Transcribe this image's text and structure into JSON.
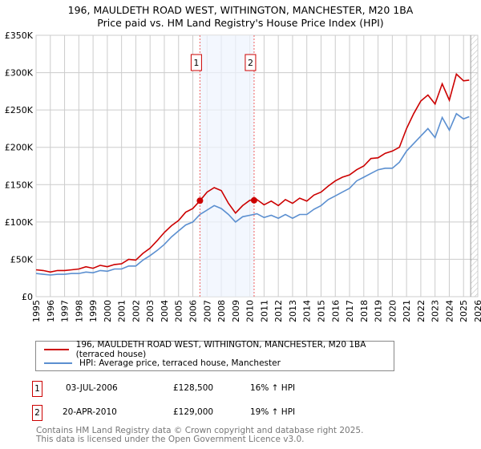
{
  "header": {
    "title": "196, MAULDETH ROAD WEST, WITHINGTON, MANCHESTER, M20 1BA",
    "subtitle": "Price paid vs. HM Land Registry's House Price Index (HPI)"
  },
  "colors": {
    "property": "#cc0000",
    "hpi": "#5b8fd0",
    "shade": "#eef3fd"
  },
  "chart_data": {
    "type": "line",
    "title": "196, MAULDETH ROAD WEST, WITHINGTON, MANCHESTER, M20 1BA",
    "xlabel": "",
    "ylabel": "",
    "xlim": [
      1995,
      2026
    ],
    "ylim": [
      0,
      350000
    ],
    "x_ticks": [
      "1995",
      "1996",
      "1997",
      "1998",
      "1999",
      "2000",
      "2001",
      "2002",
      "2003",
      "2004",
      "2005",
      "2006",
      "2007",
      "2008",
      "2009",
      "2010",
      "2011",
      "2012",
      "2013",
      "2014",
      "2015",
      "2016",
      "2017",
      "2018",
      "2019",
      "2020",
      "2021",
      "2022",
      "2023",
      "2024",
      "2025",
      "2026"
    ],
    "y_ticks": [
      {
        "v": 0,
        "label": "£0"
      },
      {
        "v": 50000,
        "label": "£50K"
      },
      {
        "v": 100000,
        "label": "£100K"
      },
      {
        "v": 150000,
        "label": "£150K"
      },
      {
        "v": 200000,
        "label": "£200K"
      },
      {
        "v": 250000,
        "label": "£250K"
      },
      {
        "v": 300000,
        "label": "£300K"
      },
      {
        "v": 350000,
        "label": "£350K"
      }
    ],
    "grid": true,
    "x": [
      1995,
      1995.5,
      1996,
      1996.5,
      1997,
      1997.5,
      1998,
      1998.5,
      1999,
      1999.5,
      2000,
      2000.5,
      2001,
      2001.5,
      2002,
      2002.5,
      2003,
      2003.5,
      2004,
      2004.5,
      2005,
      2005.5,
      2006,
      2006.5,
      2007,
      2007.5,
      2008,
      2008.5,
      2009,
      2009.5,
      2010,
      2010.5,
      2011,
      2011.5,
      2012,
      2012.5,
      2013,
      2013.5,
      2014,
      2014.5,
      2015,
      2015.5,
      2016,
      2016.5,
      2017,
      2017.5,
      2018,
      2018.5,
      2019,
      2019.5,
      2020,
      2020.5,
      2021,
      2021.5,
      2022,
      2022.5,
      2023,
      2023.5,
      2024,
      2024.5,
      2025,
      2025.4
    ],
    "series": [
      {
        "name": "196, MAULDETH ROAD WEST, WITHINGTON, MANCHESTER, M20 1BA (terraced house)",
        "values": [
          36000,
          35000,
          33000,
          35000,
          35000,
          36000,
          37000,
          40000,
          38000,
          42000,
          40000,
          43000,
          44000,
          50000,
          49000,
          58000,
          65000,
          75000,
          86000,
          95000,
          102000,
          113000,
          118000,
          128500,
          140000,
          146000,
          142000,
          125000,
          112000,
          122000,
          129000,
          130000,
          123000,
          128000,
          122000,
          130000,
          125000,
          132000,
          128000,
          136000,
          140000,
          148000,
          155000,
          160000,
          163000,
          170000,
          175000,
          185000,
          186000,
          192000,
          195000,
          200000,
          225000,
          245000,
          262000,
          270000,
          258000,
          285000,
          263000,
          298000,
          289000,
          290000
        ]
      },
      {
        "name": "HPI: Average price, terraced house, Manchester",
        "values": [
          31000,
          30000,
          29000,
          30000,
          30000,
          31000,
          31000,
          33000,
          32000,
          35000,
          34000,
          37000,
          37000,
          41000,
          41000,
          49000,
          55000,
          62000,
          70000,
          80000,
          88000,
          96000,
          100000,
          110000,
          116000,
          122000,
          118000,
          110000,
          100000,
          107000,
          109000,
          111000,
          106000,
          109000,
          105000,
          110000,
          105000,
          110000,
          110000,
          117000,
          122000,
          130000,
          135000,
          140000,
          145000,
          155000,
          160000,
          165000,
          170000,
          172000,
          172000,
          180000,
          195000,
          205000,
          215000,
          225000,
          213000,
          240000,
          223000,
          245000,
          238000,
          241000
        ]
      }
    ],
    "annotations": [
      {
        "label": "1",
        "x": 2006.5,
        "value": 128500
      },
      {
        "label": "2",
        "x": 2010.3,
        "value": 129000
      }
    ],
    "shaded_range": [
      2006.5,
      2010.3
    ]
  },
  "legend": {
    "items": [
      {
        "label": "196, MAULDETH ROAD WEST, WITHINGTON, MANCHESTER, M20 1BA (terraced house)"
      },
      {
        "label": "HPI: Average price, terraced house, Manchester"
      }
    ]
  },
  "transactions": [
    {
      "num": "1",
      "date": "03-JUL-2006",
      "price": "£128,500",
      "change": "16% ↑ HPI"
    },
    {
      "num": "2",
      "date": "20-APR-2010",
      "price": "£129,000",
      "change": "19% ↑ HPI"
    }
  ],
  "footer": {
    "line1": "Contains HM Land Registry data © Crown copyright and database right 2025.",
    "line2": "This data is licensed under the Open Government Licence v3.0."
  }
}
